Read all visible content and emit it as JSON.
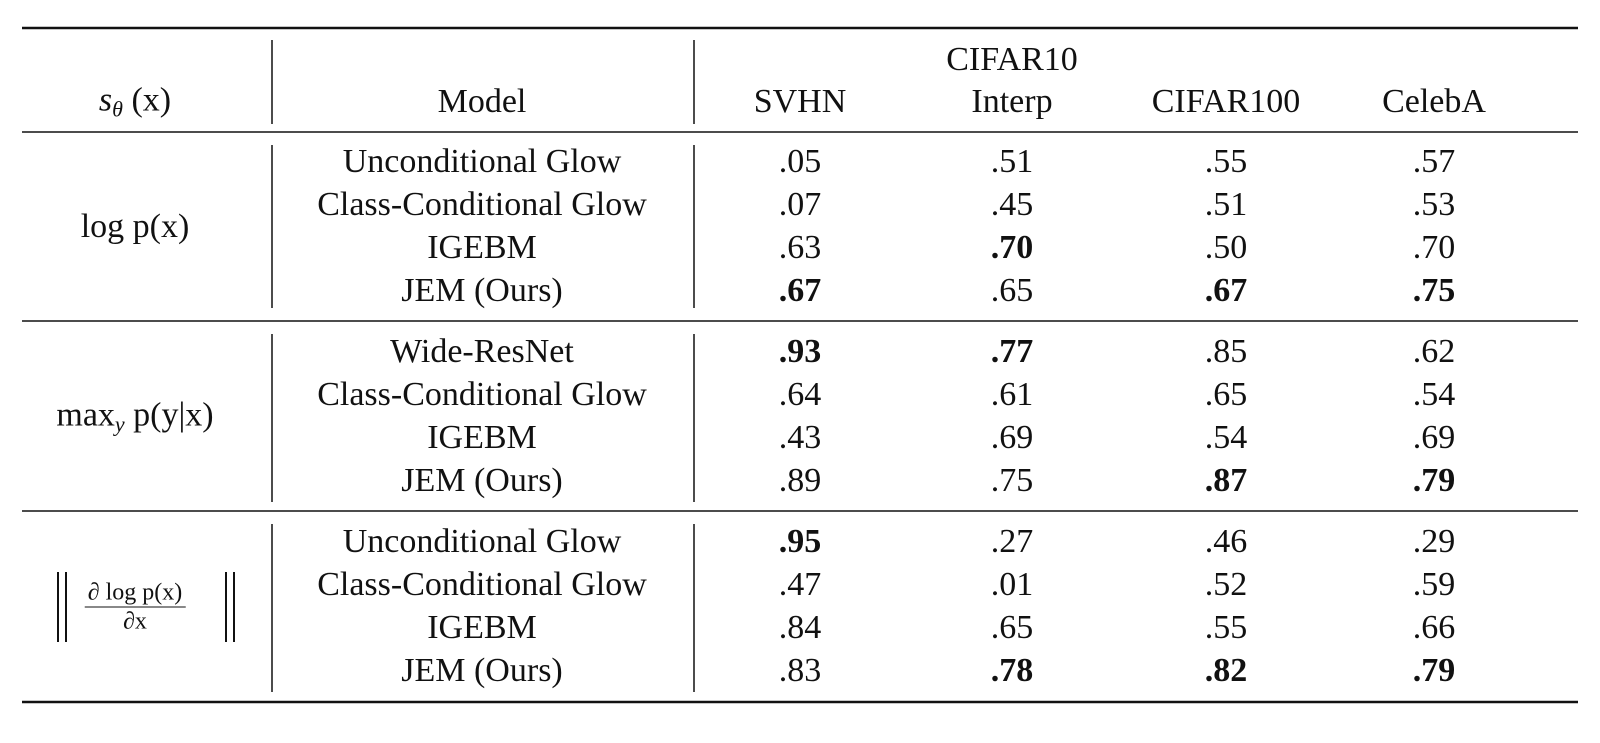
{
  "table": {
    "header": {
      "score": {
        "main": "s",
        "sub": "θ",
        "rest": "(x)"
      },
      "model": "Model",
      "columns": [
        [
          "SVHN"
        ],
        [
          "CIFAR10",
          "Interp"
        ],
        [
          "CIFAR100"
        ],
        [
          "CelebA"
        ]
      ]
    },
    "groups": [
      {
        "label": {
          "main": "log p(x)"
        },
        "rows": [
          {
            "model": "Unconditional Glow",
            "values": [
              ".05",
              ".51",
              ".55",
              ".57"
            ],
            "bold": [
              false,
              false,
              false,
              false
            ]
          },
          {
            "model": "Class-Conditional Glow",
            "values": [
              ".07",
              ".45",
              ".51",
              ".53"
            ],
            "bold": [
              false,
              false,
              false,
              false
            ]
          },
          {
            "model": "IGEBM",
            "values": [
              ".63",
              ".70",
              ".50",
              ".70"
            ],
            "bold": [
              false,
              true,
              false,
              false
            ]
          },
          {
            "model": "JEM (Ours)",
            "values": [
              ".67",
              ".65",
              ".67",
              ".75"
            ],
            "bold": [
              true,
              false,
              true,
              true
            ]
          }
        ]
      },
      {
        "label": {
          "main": "max",
          "sub": "y",
          "rest": "p(y|x)"
        },
        "rows": [
          {
            "model": "Wide-ResNet",
            "values": [
              ".93",
              ".77",
              ".85",
              ".62"
            ],
            "bold": [
              true,
              true,
              false,
              false
            ]
          },
          {
            "model": "Class-Conditional Glow",
            "values": [
              ".64",
              ".61",
              ".65",
              ".54"
            ],
            "bold": [
              false,
              false,
              false,
              false
            ]
          },
          {
            "model": "IGEBM",
            "values": [
              ".43",
              ".69",
              ".54",
              ".69"
            ],
            "bold": [
              false,
              false,
              false,
              false
            ]
          },
          {
            "model": "JEM (Ours)",
            "values": [
              ".89",
              ".75",
              ".87",
              ".79"
            ],
            "bold": [
              false,
              false,
              true,
              true
            ]
          }
        ]
      },
      {
        "label": {
          "numerator": "∂ log p(x)",
          "denominator": "∂x"
        },
        "rows": [
          {
            "model": "Unconditional Glow",
            "values": [
              ".95",
              ".27",
              ".46",
              ".29"
            ],
            "bold": [
              true,
              false,
              false,
              false
            ]
          },
          {
            "model": "Class-Conditional Glow",
            "values": [
              ".47",
              ".01",
              ".52",
              ".59"
            ],
            "bold": [
              false,
              false,
              false,
              false
            ]
          },
          {
            "model": "IGEBM",
            "values": [
              ".84",
              ".65",
              ".55",
              ".66"
            ],
            "bold": [
              false,
              false,
              false,
              false
            ]
          },
          {
            "model": "JEM (Ours)",
            "values": [
              ".83",
              ".78",
              ".82",
              ".79"
            ],
            "bold": [
              false,
              true,
              true,
              true
            ]
          }
        ]
      }
    ]
  }
}
